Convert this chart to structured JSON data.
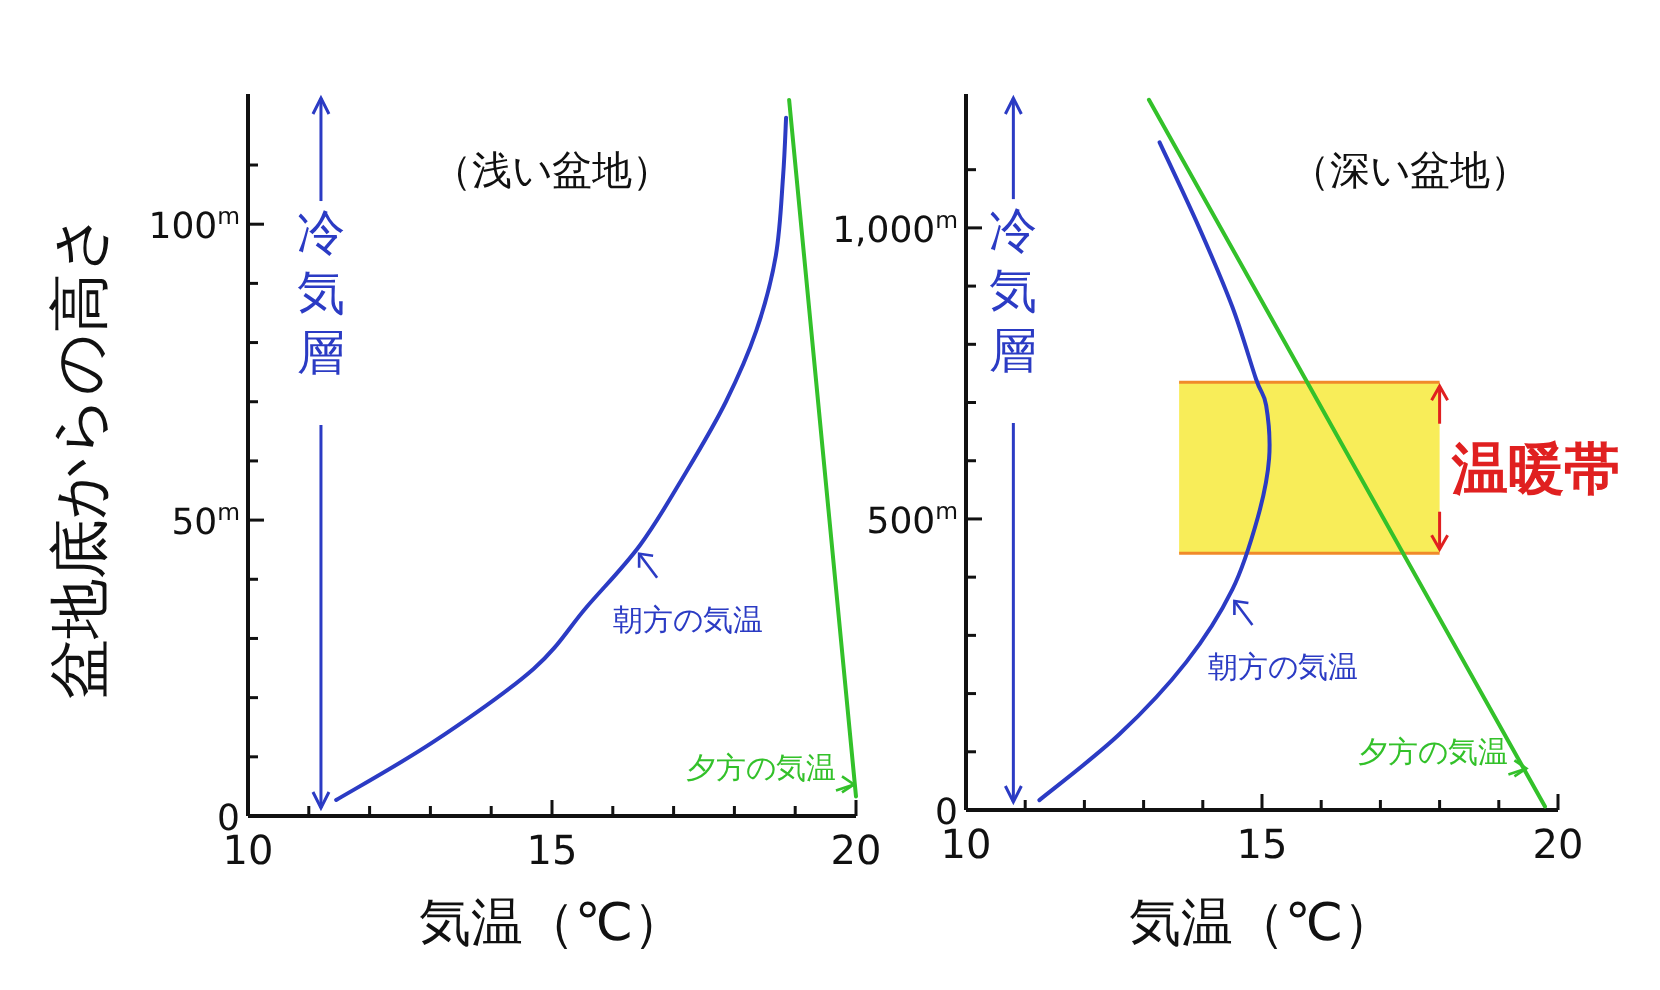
{
  "chart_data": [
    {
      "type": "line",
      "title": "（浅い盆地）",
      "xlabel": "気温（℃）",
      "ylabel": "盆地底からの高さ",
      "xlim": [
        10,
        20
      ],
      "ylim": [
        0,
        122
      ],
      "xticks": [
        10,
        {
          "value": 11,
          "label": null
        },
        {
          "value": 12,
          "label": null
        },
        {
          "value": 13,
          "label": null
        },
        {
          "value": 14,
          "label": null
        },
        15,
        {
          "value": 16,
          "label": null
        },
        {
          "value": 17,
          "label": null
        },
        {
          "value": 18,
          "label": null
        },
        {
          "value": 19,
          "label": null
        },
        20
      ],
      "yticks": [
        0,
        {
          "value": 10,
          "label": null
        },
        {
          "value": 20,
          "label": null
        },
        {
          "value": 30,
          "label": null
        },
        {
          "value": 40,
          "label": null
        },
        {
          "value": 50,
          "label": "50$^{m}$"
        },
        {
          "value": 60,
          "label": null
        },
        {
          "value": 70,
          "label": null
        },
        {
          "value": 80,
          "label": null
        },
        {
          "value": 90,
          "label": null
        },
        {
          "value": 100,
          "label": "100$^{m}$"
        },
        {
          "value": 110,
          "label": null
        }
      ],
      "grid": false,
      "marker": "none",
      "line_style": "solid",
      "series": [
        {
          "color": "#2b3bc4",
          "x": [
            11.45,
            13.06,
            14.7,
            15.56,
            16.45,
            17.2,
            17.86,
            18.36,
            18.68,
            18.8,
            18.85
          ],
          "values": [
            2.7,
            12.6,
            24.9,
            35.2,
            45.8,
            58,
            70,
            82,
            94.6,
            108,
            118
          ]
        },
        {
          "color": "#33c12a",
          "x": [
            18.9,
            20
          ],
          "values": [
            121,
            3.3
          ]
        }
      ],
      "annotations": [
        {
          "text": "朝方の気温",
          "x": 16.4,
          "y": 45
        },
        {
          "text": "夕方の気温",
          "x": 20,
          "y": 5
        },
        "冷気層"
      ]
    },
    {
      "type": "line",
      "title": "（深い盆地）",
      "xlabel": "気温（℃）",
      "xlim": [
        10,
        20
      ],
      "ylim": [
        0,
        1230
      ],
      "xticks": [
        10,
        {
          "value": 11,
          "label": null
        },
        {
          "value": 12,
          "label": null
        },
        {
          "value": 13,
          "label": null
        },
        {
          "value": 14,
          "label": null
        },
        15,
        {
          "value": 16,
          "label": null
        },
        {
          "value": 17,
          "label": null
        },
        {
          "value": 18,
          "label": null
        },
        {
          "value": 19,
          "label": null
        },
        20
      ],
      "yticks": [
        0,
        {
          "value": 100,
          "label": null
        },
        {
          "value": 200,
          "label": null
        },
        {
          "value": 300,
          "label": null
        },
        {
          "value": 400,
          "label": null
        },
        {
          "value": 500,
          "label": "500$^{m}$"
        },
        {
          "value": 600,
          "label": null
        },
        {
          "value": 700,
          "label": null
        },
        {
          "value": 800,
          "label": null
        },
        {
          "value": 900,
          "label": null
        },
        {
          "value": 1000,
          "label": "1,000$^{m}$"
        },
        {
          "value": 1100,
          "label": null
        }
      ],
      "grid": false,
      "marker": "none",
      "line_style": "solid",
      "series": [
        {
          "color": "#2b3bc4",
          "x": [
            11.24,
            12.59,
            13.72,
            14.5,
            14.93,
            15.12,
            15.07,
            14.9,
            14.5,
            13.94,
            13.27
          ],
          "values": [
            17,
            130,
            254,
            379,
            503,
            604,
            695,
            740,
            864,
            1000,
            1147
          ]
        },
        {
          "color": "#33c12a",
          "x": [
            13.09,
            19.78
          ],
          "values": [
            1220,
            6
          ]
        }
      ],
      "bands": [
        {
          "axis": "y",
          "from": 441,
          "to": 735,
          "label": "温暖帯",
          "color": "#f7ea3c"
        }
      ],
      "annotations": [
        {
          "text": "朝方の気温",
          "x": 14.5,
          "y": 366
        },
        {
          "text": "夕方の気温",
          "x": 19.5,
          "y": 68
        },
        "冷気層"
      ]
    }
  ]
}
